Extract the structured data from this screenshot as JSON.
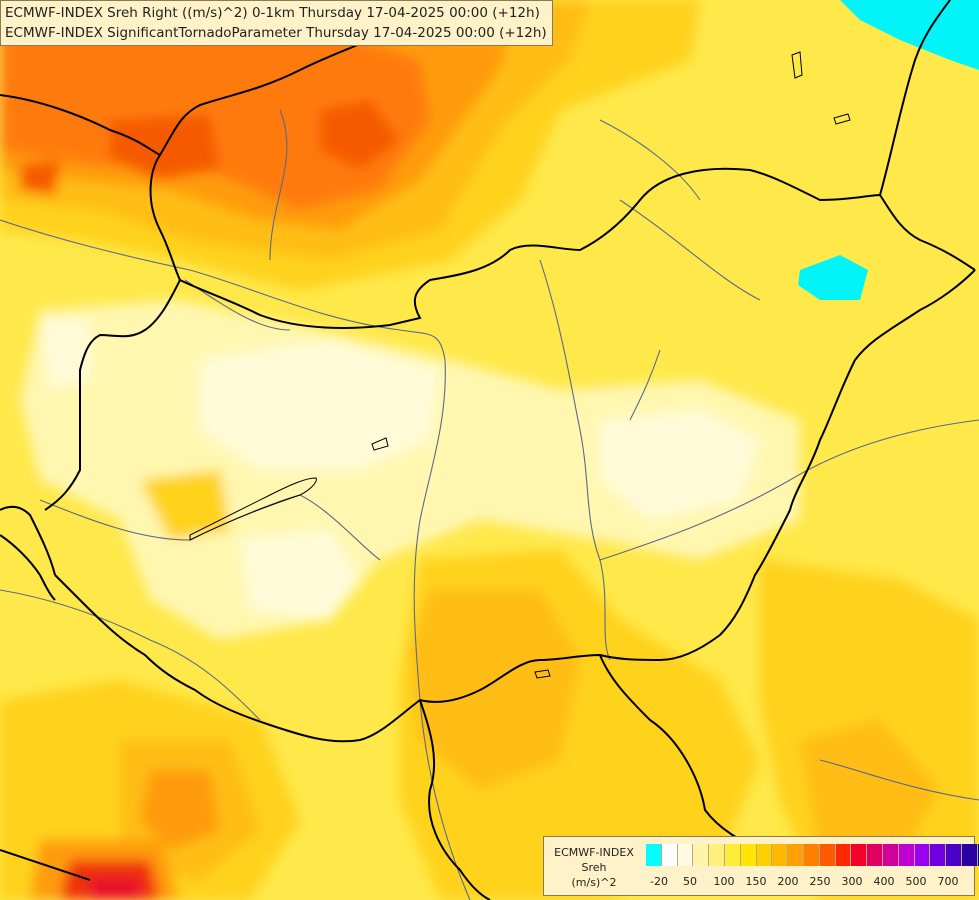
{
  "titles": {
    "line1": "ECMWF-INDEX Sreh Right ((m/s)^2) 0-1km Thursday 17-04-2025 00:00 (+12h)",
    "line2": "ECMWF-INDEX SignificantTornadoParameter Thursday 17-04-2025 00:00 (+12h)"
  },
  "legend": {
    "name1": "ECMWF-INDEX",
    "name2": "Sreh",
    "name3": "(m/s)^2",
    "colors": [
      "#00ffff",
      "#ffffff",
      "#fffbe0",
      "#fff5aa",
      "#fff07a",
      "#ffeb3a",
      "#ffe600",
      "#ffd000",
      "#ffb800",
      "#ffa000",
      "#ff8000",
      "#ff5a00",
      "#ff2800",
      "#f5002a",
      "#e00060",
      "#d0009a",
      "#c000d0",
      "#9a00f0",
      "#7000e0",
      "#4a00c8",
      "#2a00a0",
      "#100080"
    ],
    "ticks": [
      "-20",
      "50",
      "100",
      "150",
      "200",
      "250",
      "300",
      "400",
      "500",
      "700"
    ]
  },
  "map": {
    "fill_colors": {
      "base": "#ffe84a",
      "light": "#fff7b0",
      "lighter": "#fffbd8",
      "gold": "#ffd21e",
      "amber": "#ffbd12",
      "orange": "#ff9b0a",
      "deep_orange": "#ff7a08",
      "red_orange": "#f55a05",
      "red": "#f03010",
      "hot": "#e8102a",
      "cyan": "#00f4f8"
    },
    "border_color": "#000000",
    "river_color": "#5a6a8a"
  }
}
